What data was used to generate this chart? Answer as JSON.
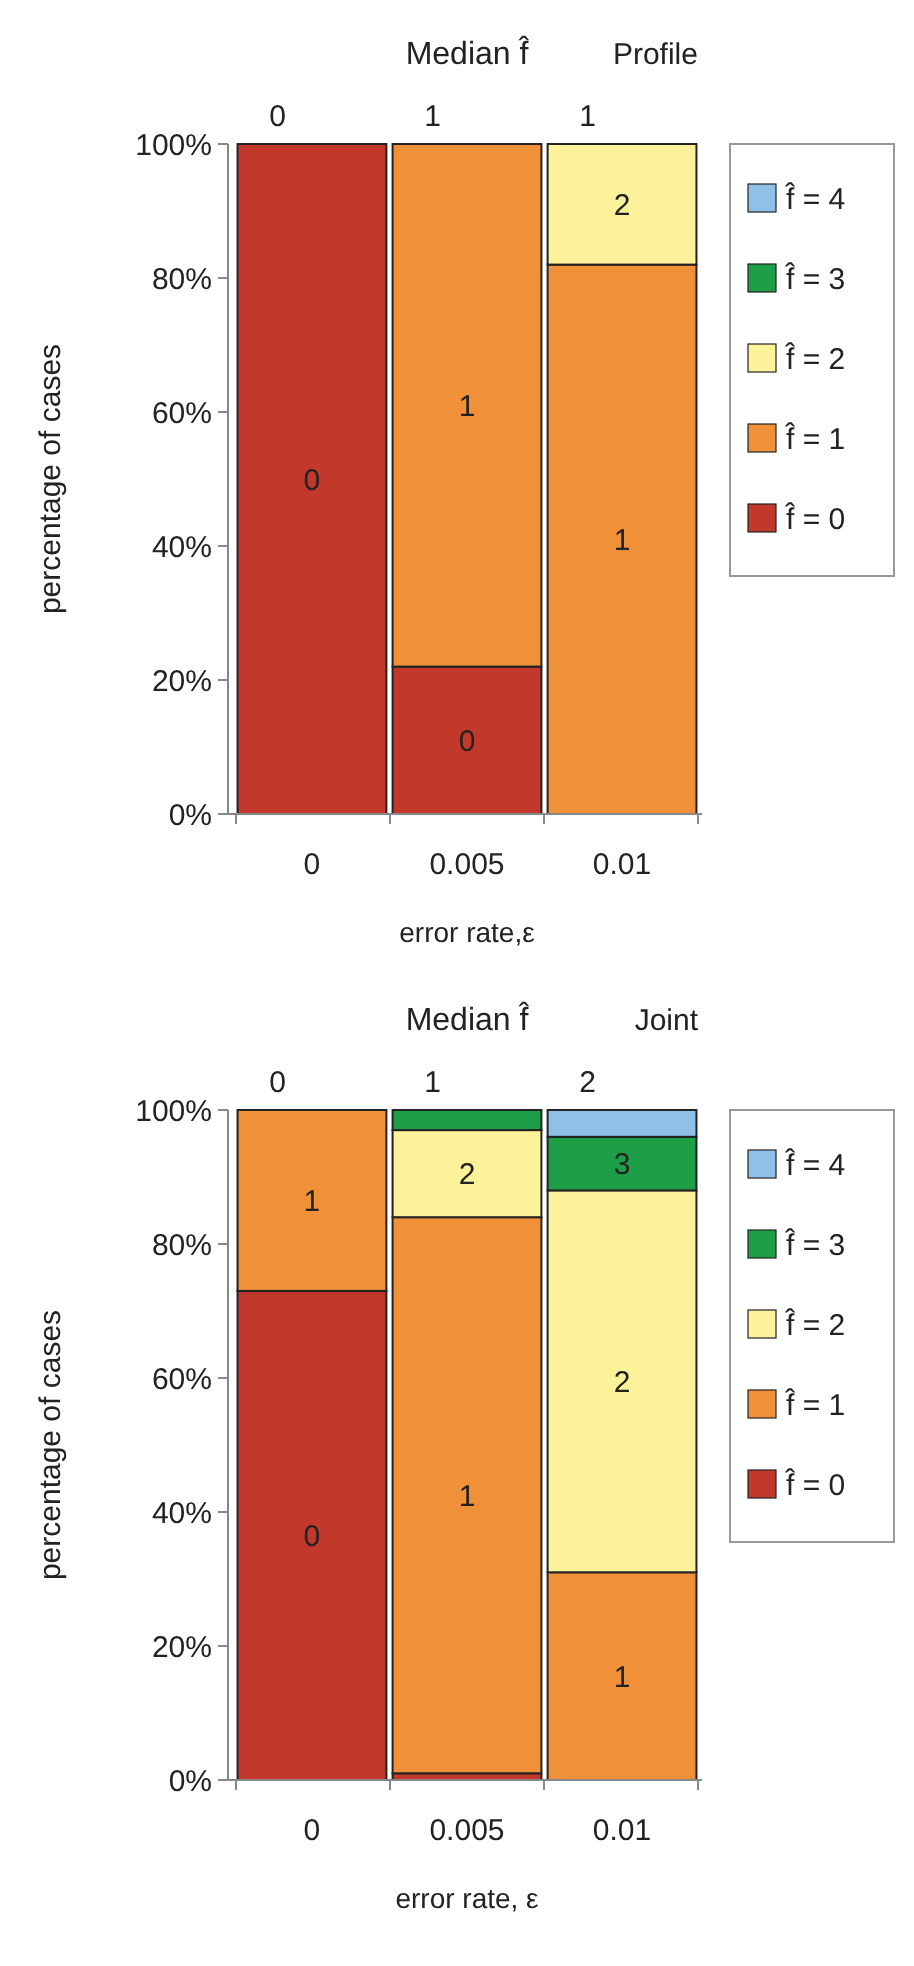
{
  "chart_data": [
    {
      "type": "bar",
      "stacked": true,
      "title": "Median f̂",
      "subtitle": "Profile",
      "xlabel": "error rate,ε",
      "ylabel": "percentage of cases",
      "categories": [
        "0",
        "0.005",
        "0.01"
      ],
      "ylim": [
        0,
        100
      ],
      "yticks": [
        {
          "value": 0,
          "label": "0%"
        },
        {
          "value": 20,
          "label": "20%"
        },
        {
          "value": 40,
          "label": "40%"
        },
        {
          "value": 60,
          "label": "60%"
        },
        {
          "value": 80,
          "label": "80%"
        },
        {
          "value": 100,
          "label": "100%"
        }
      ],
      "grid": false,
      "legend": "right",
      "annotations": [
        "0",
        "1",
        "1",
        "0",
        "0",
        "1",
        "1",
        "2"
      ],
      "series": [
        {
          "name": "f̂ = 0",
          "color": "#c2392b",
          "values": [
            100,
            22,
            0
          ]
        },
        {
          "name": "f̂ = 1",
          "color": "#f0913a",
          "values": [
            0,
            78,
            82
          ]
        },
        {
          "name": "f̂ = 2",
          "color": "#fbf29a",
          "values": [
            0,
            0,
            18
          ]
        },
        {
          "name": "f̂ = 3",
          "color": "#1f9e48",
          "values": [
            0,
            0,
            0
          ]
        },
        {
          "name": "f̂ = 4",
          "color": "#8fc1e8",
          "values": [
            0,
            0,
            0
          ]
        }
      ]
    },
    {
      "type": "bar",
      "stacked": true,
      "title": "Median f̂",
      "subtitle": "Joint",
      "xlabel": "error rate, ε",
      "ylabel": "percentage of cases",
      "categories": [
        "0",
        "0.005",
        "0.01"
      ],
      "ylim": [
        0,
        100
      ],
      "yticks": [
        {
          "value": 0,
          "label": "0%"
        },
        {
          "value": 20,
          "label": "20%"
        },
        {
          "value": 40,
          "label": "40%"
        },
        {
          "value": 60,
          "label": "60%"
        },
        {
          "value": 80,
          "label": "80%"
        },
        {
          "value": 100,
          "label": "100%"
        }
      ],
      "grid": false,
      "legend": "right",
      "annotations": [
        "0",
        "1",
        "2",
        "0",
        "1",
        "1",
        "2",
        "1",
        "2",
        "3"
      ],
      "series": [
        {
          "name": "f̂ = 0",
          "color": "#c2392b",
          "values": [
            73,
            1,
            0
          ]
        },
        {
          "name": "f̂ = 1",
          "color": "#f0913a",
          "values": [
            27,
            83,
            31
          ]
        },
        {
          "name": "f̂ = 2",
          "color": "#fbf29a",
          "values": [
            0,
            13,
            57
          ]
        },
        {
          "name": "f̂ = 3",
          "color": "#1f9e48",
          "values": [
            0,
            3,
            8
          ]
        },
        {
          "name": "f̂ = 4",
          "color": "#8fc1e8",
          "values": [
            0,
            0,
            4
          ]
        }
      ]
    }
  ]
}
